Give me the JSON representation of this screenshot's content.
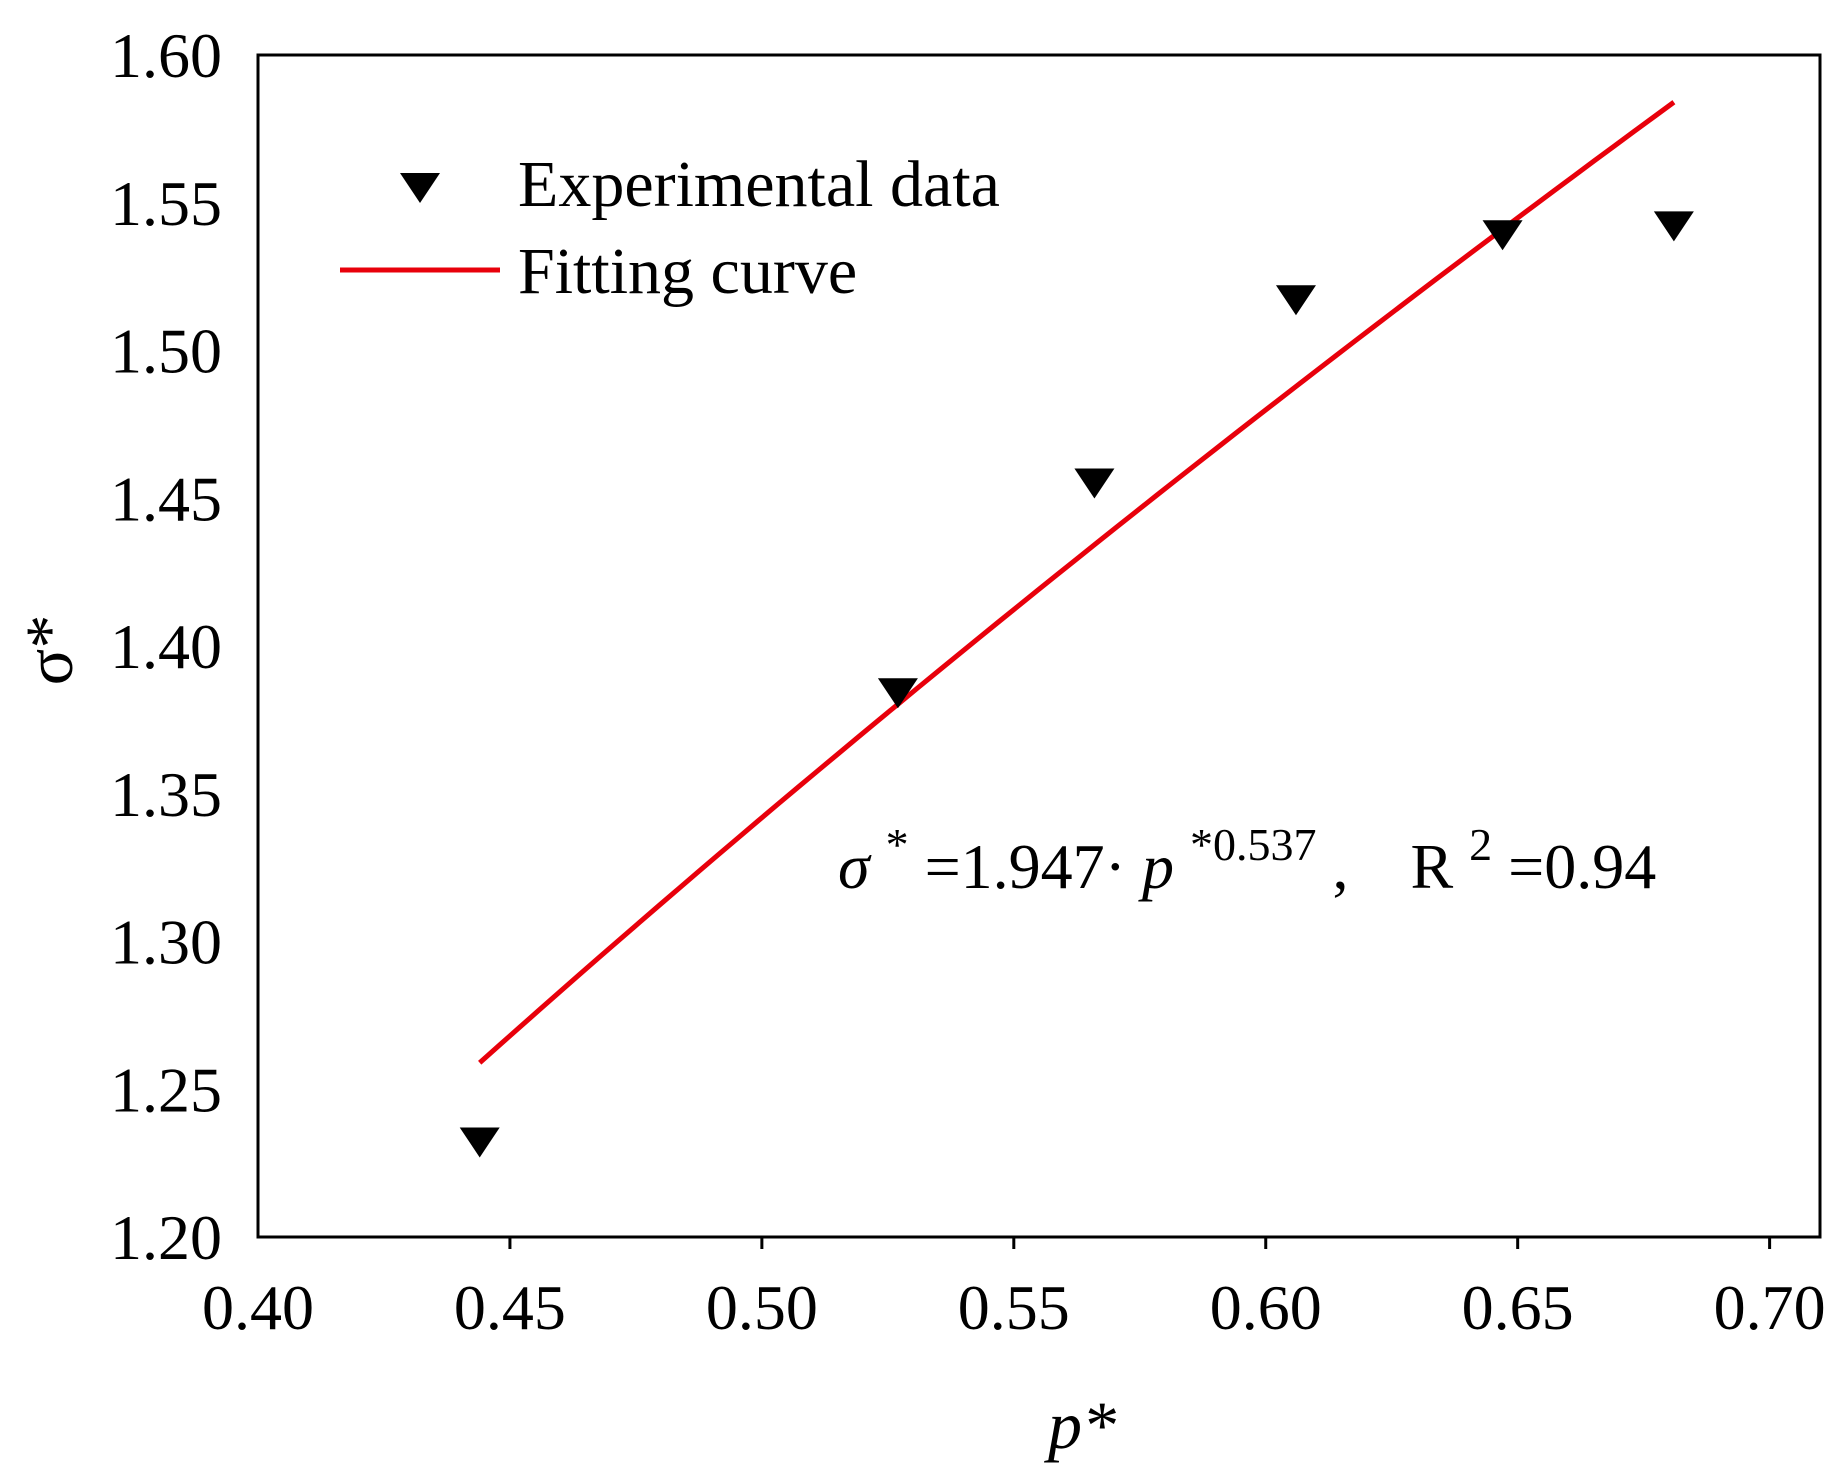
{
  "chart_data": {
    "type": "scatter",
    "title": "",
    "xlabel": "p*",
    "ylabel": "σ*",
    "xlim": [
      0.4,
      0.71
    ],
    "ylim": [
      1.2,
      1.6
    ],
    "x_ticks": [
      "0.40",
      "0.45",
      "0.50",
      "0.55",
      "0.60",
      "0.65",
      "0.70"
    ],
    "y_ticks": [
      "1.20",
      "1.25",
      "1.30",
      "1.35",
      "1.40",
      "1.45",
      "1.50",
      "1.55",
      "1.60"
    ],
    "grid": false,
    "legend_position": "top-left",
    "series": [
      {
        "name": "Experimental data",
        "kind": "scatter",
        "marker": "down-triangle",
        "color": "#000000",
        "x": [
          0.444,
          0.527,
          0.566,
          0.606,
          0.647,
          0.681
        ],
        "y": [
          1.232,
          1.384,
          1.455,
          1.517,
          1.539,
          1.542
        ]
      },
      {
        "name": "Fitting curve",
        "kind": "line",
        "color": "#e8000b",
        "fit": {
          "coefficient": 1.947,
          "exponent": 0.537
        },
        "x_range": [
          0.444,
          0.681
        ]
      }
    ],
    "annotation": {
      "lhs": "σ",
      "lhs_sup": "*",
      "mid": "=1.947·",
      "var": "p",
      "var_sup": "*0.537",
      "sep": ",",
      "r_label": "R",
      "r_sup": "2",
      "r_value": "=0.94"
    }
  }
}
